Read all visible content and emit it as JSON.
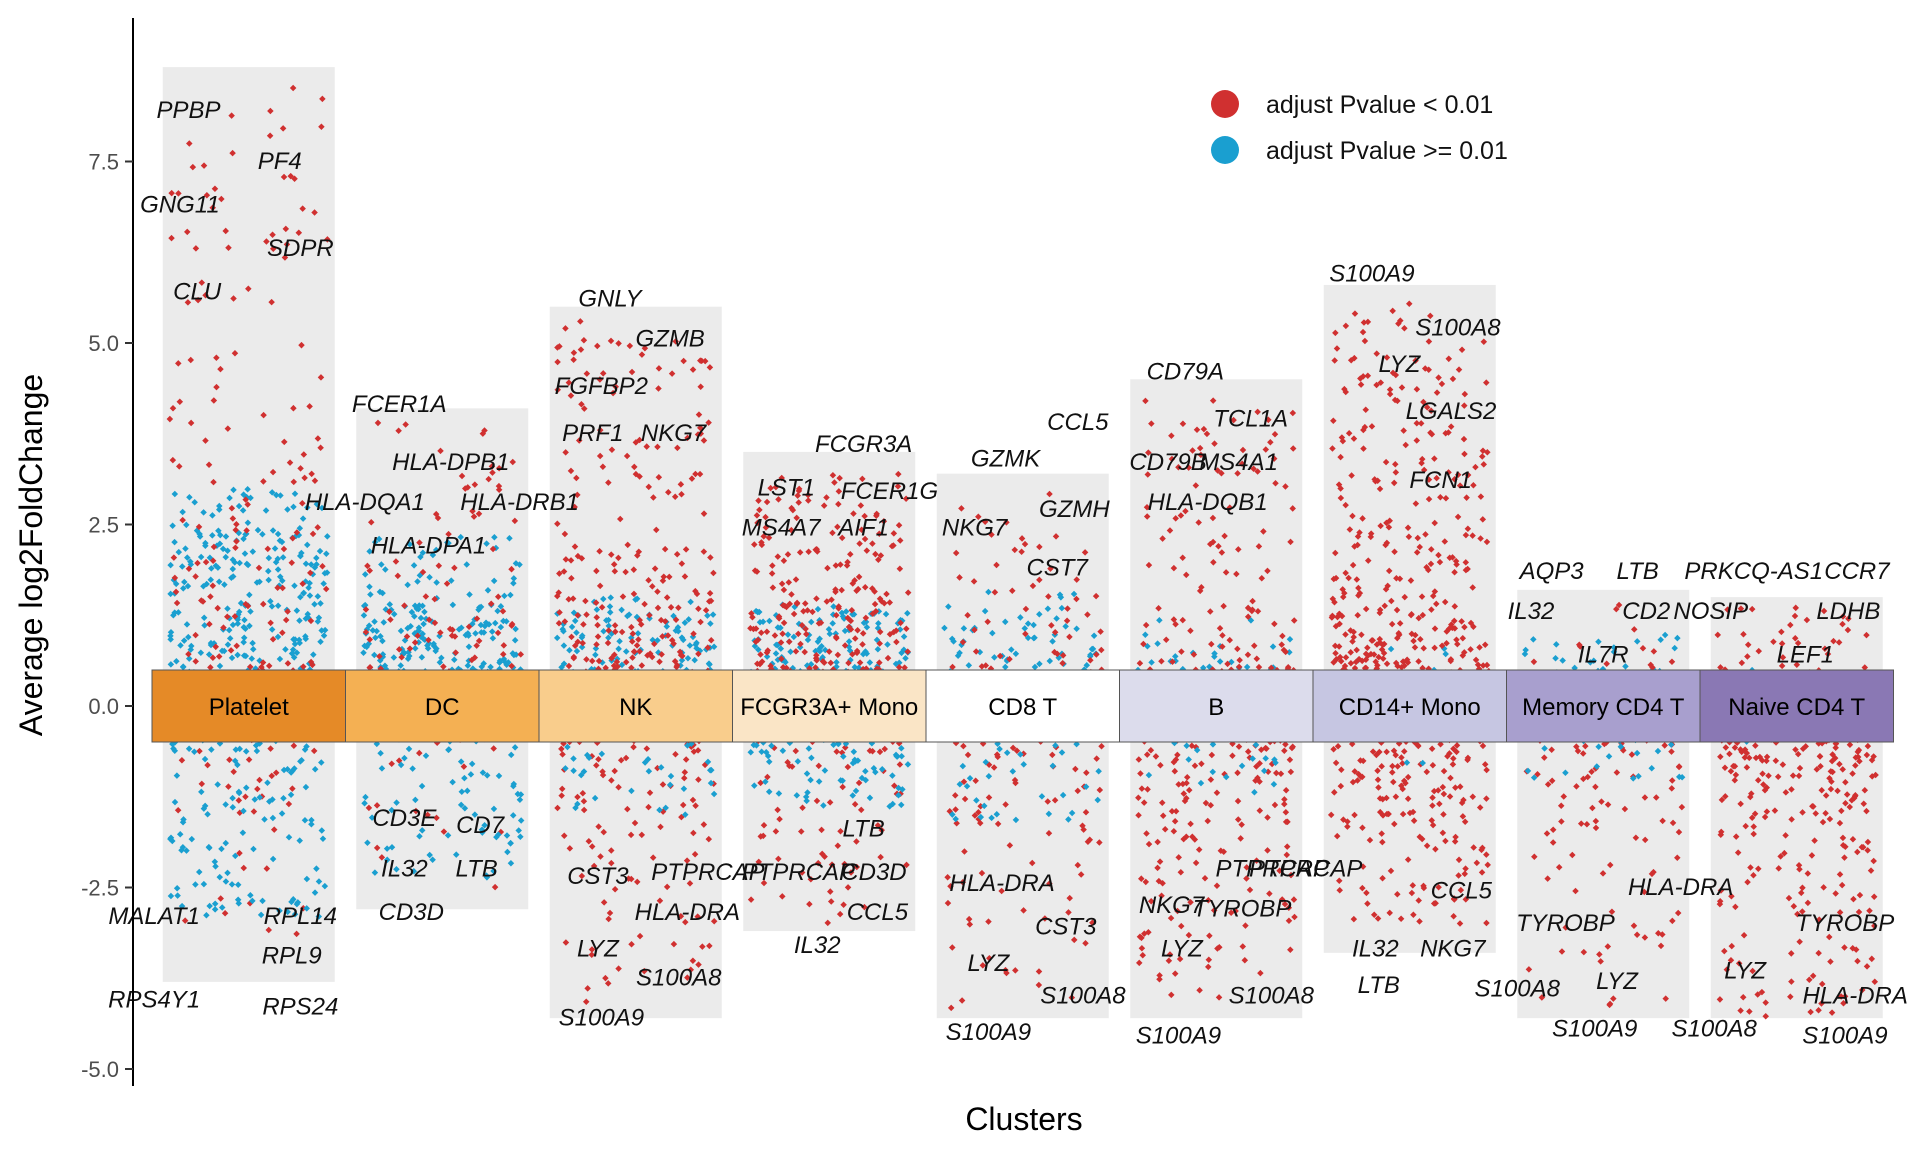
{
  "chart_data": {
    "type": "scatter",
    "xlabel": "Clusters",
    "ylabel": "Average log2FoldChange",
    "ylim": [
      -5.0,
      8.8
    ],
    "yticks": [
      {
        "value": -5.0,
        "label": "-5.0"
      },
      {
        "value": -2.5,
        "label": "-2.5"
      },
      {
        "value": 0.0,
        "label": "0.0"
      },
      {
        "value": 2.5,
        "label": "2.5"
      },
      {
        "value": 5.0,
        "label": "5.0"
      },
      {
        "value": 7.5,
        "label": "7.5"
      }
    ],
    "legend": {
      "position": "top-right",
      "entries": [
        {
          "label": "adjust Pvalue < 0.01",
          "color": "#d03030"
        },
        {
          "label": "adjust Pvalue >= 0.01",
          "color": "#1a9fd0"
        }
      ]
    },
    "clusters": [
      {
        "name": "Platelet",
        "color": "#e58a27",
        "range": [
          -3.8,
          8.8
        ],
        "up_sig_max": 8.6,
        "down_sig_min": -3.4,
        "ns_band": [
          -3.0,
          3.0
        ],
        "n_up_sig": 200,
        "n_up_ns": 120,
        "n_down_sig": 50,
        "n_down_ns": 140,
        "labels": [
          {
            "text": "PPBP",
            "dx": -0.35,
            "y": 8.1
          },
          {
            "text": "PF4",
            "dx": 0.18,
            "y": 7.4
          },
          {
            "text": "GNG11",
            "dx": -0.4,
            "y": 6.8
          },
          {
            "text": "SDPR",
            "dx": 0.3,
            "y": 6.2
          },
          {
            "text": "CLU",
            "dx": -0.3,
            "y": 5.6
          },
          {
            "text": "MALAT1",
            "dx": -0.55,
            "y": -3.0
          },
          {
            "text": "RPL14",
            "dx": 0.3,
            "y": -3.0
          },
          {
            "text": "RPL9",
            "dx": 0.25,
            "y": -3.55
          },
          {
            "text": "RPS4Y1",
            "dx": -0.55,
            "y": -4.15
          },
          {
            "text": "RPS24",
            "dx": 0.3,
            "y": -4.25
          }
        ]
      },
      {
        "name": "DC",
        "color": "#f4b053",
        "range": [
          -2.8,
          4.1
        ],
        "up_sig_max": 4.0,
        "down_sig_min": -2.6,
        "ns_band": [
          -2.4,
          1.4
        ],
        "n_up_sig": 130,
        "n_up_ns": 120,
        "n_down_sig": 30,
        "n_down_ns": 90,
        "labels": [
          {
            "text": "FCER1A",
            "dx": -0.25,
            "y": 4.05
          },
          {
            "text": "HLA-DPB1",
            "dx": 0.05,
            "y": 3.25
          },
          {
            "text": "HLA-DQA1",
            "dx": -0.45,
            "y": 2.7
          },
          {
            "text": "HLA-DRB1",
            "dx": 0.45,
            "y": 2.7
          },
          {
            "text": "HLA-DPA1",
            "dx": -0.08,
            "y": 2.1
          },
          {
            "text": "CD3E",
            "dx": -0.22,
            "y": -1.65
          },
          {
            "text": "CD7",
            "dx": 0.22,
            "y": -1.75
          },
          {
            "text": "IL32",
            "dx": -0.22,
            "y": -2.35
          },
          {
            "text": "LTB",
            "dx": 0.2,
            "y": -2.35
          },
          {
            "text": "CD3D",
            "dx": -0.18,
            "y": -2.95
          }
        ]
      },
      {
        "name": "NK",
        "color": "#f9cd8c",
        "range": [
          -4.3,
          5.5
        ],
        "up_sig_max": 5.3,
        "down_sig_min": -4.1,
        "ns_band": [
          -1.5,
          1.3
        ],
        "n_up_sig": 280,
        "n_up_ns": 80,
        "n_down_sig": 170,
        "n_down_ns": 40,
        "labels": [
          {
            "text": "GNLY",
            "dx": -0.15,
            "y": 5.5
          },
          {
            "text": "GZMB",
            "dx": 0.2,
            "y": 4.95
          },
          {
            "text": "FGFBP2",
            "dx": -0.2,
            "y": 4.3
          },
          {
            "text": "PRF1",
            "dx": -0.25,
            "y": 3.65
          },
          {
            "text": "NKG7",
            "dx": 0.22,
            "y": 3.65
          },
          {
            "text": "CST3",
            "dx": -0.22,
            "y": -2.45
          },
          {
            "text": "PTPRCAP",
            "dx": 0.42,
            "y": -2.4
          },
          {
            "text": "HLA-DRA",
            "dx": 0.3,
            "y": -2.95
          },
          {
            "text": "LYZ",
            "dx": -0.22,
            "y": -3.45
          },
          {
            "text": "S100A8",
            "dx": 0.25,
            "y": -3.85
          },
          {
            "text": "S100A9",
            "dx": -0.2,
            "y": -4.4
          }
        ]
      },
      {
        "name": "FCGR3A+ Mono",
        "color": "#fae5c6",
        "range": [
          -3.1,
          3.5
        ],
        "up_sig_max": 3.2,
        "down_sig_min": -3.0,
        "ns_band": [
          -1.4,
          1.3
        ],
        "n_up_sig": 360,
        "n_up_ns": 60,
        "n_down_sig": 100,
        "n_down_ns": 90,
        "labels": [
          {
            "text": "FCGR3A",
            "dx": 0.2,
            "y": 3.5
          },
          {
            "text": "LST1",
            "dx": -0.25,
            "y": 2.9
          },
          {
            "text": "FCER1G",
            "dx": 0.35,
            "y": 2.85
          },
          {
            "text": "MS4A7",
            "dx": -0.28,
            "y": 2.35
          },
          {
            "text": "AIF1",
            "dx": 0.2,
            "y": 2.35
          },
          {
            "text": "LTB",
            "dx": 0.2,
            "y": -1.8
          },
          {
            "text": "PTPRCAP",
            "dx": -0.18,
            "y": -2.4
          },
          {
            "text": "CD3D",
            "dx": 0.26,
            "y": -2.4
          },
          {
            "text": "CCL5",
            "dx": 0.28,
            "y": -2.95
          },
          {
            "text": "IL32",
            "dx": -0.07,
            "y": -3.4
          }
        ]
      },
      {
        "name": "CD8 T",
        "color": "#ffffff",
        "range": [
          -4.3,
          3.2
        ],
        "up_sig_max": 3.0,
        "down_sig_min": -4.2,
        "ns_band": [
          -1.6,
          1.2
        ],
        "n_up_sig": 90,
        "n_up_ns": 30,
        "n_down_sig": 110,
        "n_down_ns": 40,
        "labels": [
          {
            "text": "CCL5",
            "dx": 0.32,
            "y": 3.8
          },
          {
            "text": "GZMK",
            "dx": -0.1,
            "y": 3.3
          },
          {
            "text": "NKG7",
            "dx": -0.28,
            "y": 2.35
          },
          {
            "text": "GZMH",
            "dx": 0.3,
            "y": 2.6
          },
          {
            "text": "CST7",
            "dx": 0.2,
            "y": 1.8
          },
          {
            "text": "HLA-DRA",
            "dx": -0.12,
            "y": -2.55
          },
          {
            "text": "CST3",
            "dx": 0.25,
            "y": -3.15
          },
          {
            "text": "LYZ",
            "dx": -0.2,
            "y": -3.65
          },
          {
            "text": "S100A8",
            "dx": 0.35,
            "y": -4.1
          },
          {
            "text": "S100A9",
            "dx": -0.2,
            "y": -4.6
          }
        ]
      },
      {
        "name": "B",
        "color": "#dcdcec",
        "range": [
          -4.3,
          4.5
        ],
        "up_sig_max": 4.3,
        "down_sig_min": -4.1,
        "ns_band": [
          -1.2,
          1.0
        ],
        "n_up_sig": 170,
        "n_up_ns": 30,
        "n_down_sig": 240,
        "n_down_ns": 25,
        "labels": [
          {
            "text": "CD79A",
            "dx": -0.18,
            "y": 4.5
          },
          {
            "text": "TCL1A",
            "dx": 0.2,
            "y": 3.85
          },
          {
            "text": "CD79B",
            "dx": -0.28,
            "y": 3.25
          },
          {
            "text": "MS4A1",
            "dx": 0.13,
            "y": 3.25
          },
          {
            "text": "HLA-DQB1",
            "dx": -0.05,
            "y": 2.7
          },
          {
            "text": "PTPRCAP",
            "dx": 0.52,
            "y": -2.35
          },
          {
            "text": "NKG7",
            "dx": -0.26,
            "y": -2.85
          },
          {
            "text": "TYROBP",
            "dx": 0.15,
            "y": -2.9
          },
          {
            "text": "LYZ",
            "dx": -0.2,
            "y": -3.45
          },
          {
            "text": "S100A8",
            "dx": 0.32,
            "y": -4.1
          },
          {
            "text": "S100A9",
            "dx": -0.22,
            "y": -4.65
          }
        ]
      },
      {
        "name": "CD14+ Mono",
        "color": "#c6c6e2",
        "range": [
          -3.4,
          5.8
        ],
        "up_sig_max": 5.6,
        "down_sig_min": -3.0,
        "ns_band": [
          -0.8,
          0.7
        ],
        "n_up_sig": 440,
        "n_up_ns": 5,
        "n_down_sig": 240,
        "n_down_ns": 5,
        "labels": [
          {
            "text": "S100A9",
            "dx": -0.22,
            "y": 5.85
          },
          {
            "text": "S100A8",
            "dx": 0.28,
            "y": 5.1
          },
          {
            "text": "LYZ",
            "dx": -0.06,
            "y": 4.6
          },
          {
            "text": "LGALS2",
            "dx": 0.24,
            "y": 3.95
          },
          {
            "text": "FCN1",
            "dx": 0.18,
            "y": 3.0
          },
          {
            "text": "PTPRCAP",
            "dx": -0.8,
            "y": -2.35
          },
          {
            "text": "CCL5",
            "dx": 0.3,
            "y": -2.65
          },
          {
            "text": "IL32",
            "dx": -0.2,
            "y": -3.45
          },
          {
            "text": "NKG7",
            "dx": 0.25,
            "y": -3.45
          },
          {
            "text": "LTB",
            "dx": -0.18,
            "y": -3.95
          }
        ]
      },
      {
        "name": "Memory CD4 T",
        "color": "#a89fce",
        "range": [
          -4.3,
          1.6
        ],
        "up_sig_max": 1.4,
        "down_sig_min": -4.2,
        "ns_band": [
          -1.0,
          0.9
        ],
        "n_up_sig": 40,
        "n_up_ns": 10,
        "n_down_sig": 120,
        "n_down_ns": 25,
        "labels": [
          {
            "text": "AQP3",
            "dx": -0.3,
            "y": 1.75
          },
          {
            "text": "LTB",
            "dx": 0.2,
            "y": 1.75
          },
          {
            "text": "IL32",
            "dx": -0.42,
            "y": 1.2
          },
          {
            "text": "CD2",
            "dx": 0.25,
            "y": 1.2
          },
          {
            "text": "IL7R",
            "dx": 0.0,
            "y": 0.6
          },
          {
            "text": "HLA-DRA",
            "dx": 0.45,
            "y": -2.6
          },
          {
            "text": "TYROBP",
            "dx": -0.22,
            "y": -3.1
          },
          {
            "text": "LYZ",
            "dx": 0.08,
            "y": -3.9
          },
          {
            "text": "S100A8",
            "dx": -0.5,
            "y": -4.0
          },
          {
            "text": "S100A9",
            "dx": -0.05,
            "y": -4.55
          }
        ]
      },
      {
        "name": "Naive CD4 T",
        "color": "#8a78b4",
        "range": [
          -4.3,
          1.5
        ],
        "up_sig_max": 1.4,
        "down_sig_min": -4.3,
        "ns_band": [
          -0.5,
          0.5
        ],
        "n_up_sig": 90,
        "n_up_ns": 5,
        "n_down_sig": 300,
        "n_down_ns": 5,
        "labels": [
          {
            "text": "PRKCQ-AS1",
            "dx": -0.25,
            "y": 1.75
          },
          {
            "text": "CCR7",
            "dx": 0.35,
            "y": 1.75
          },
          {
            "text": "NOSIP",
            "dx": -0.5,
            "y": 1.2
          },
          {
            "text": "LDHB",
            "dx": 0.3,
            "y": 1.2
          },
          {
            "text": "LEF1",
            "dx": 0.05,
            "y": 0.6
          },
          {
            "text": "TYROBP",
            "dx": 0.28,
            "y": -3.1
          },
          {
            "text": "LYZ",
            "dx": -0.3,
            "y": -3.75
          },
          {
            "text": "HLA-DRA",
            "dx": 0.34,
            "y": -4.1
          },
          {
            "text": "S100A8",
            "dx": -0.48,
            "y": -4.55
          },
          {
            "text": "S100A9",
            "dx": 0.28,
            "y": -4.65
          }
        ]
      }
    ]
  }
}
